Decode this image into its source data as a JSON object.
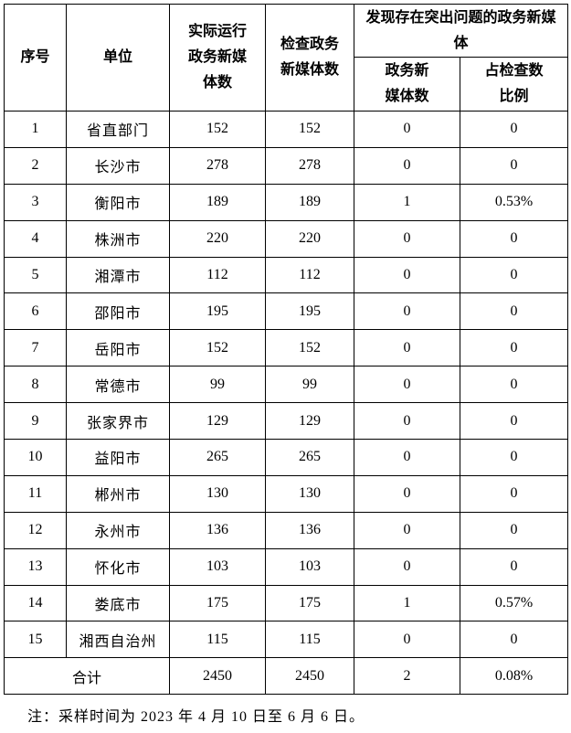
{
  "headers": {
    "index": "序号",
    "unit": "单位",
    "actual": "实际运行政务新媒体数",
    "checked": "检查政务新媒体数",
    "problem_group": "发现存在突出问题的政务新媒体",
    "problem_count": "政务新媒体数",
    "problem_ratio": "占检查数比例"
  },
  "rows": [
    {
      "index": "1",
      "unit": "省直部门",
      "actual": "152",
      "checked": "152",
      "problem": "0",
      "ratio": "0"
    },
    {
      "index": "2",
      "unit": "长沙市",
      "actual": "278",
      "checked": "278",
      "problem": "0",
      "ratio": "0"
    },
    {
      "index": "3",
      "unit": "衡阳市",
      "actual": "189",
      "checked": "189",
      "problem": "1",
      "ratio": "0.53%"
    },
    {
      "index": "4",
      "unit": "株洲市",
      "actual": "220",
      "checked": "220",
      "problem": "0",
      "ratio": "0"
    },
    {
      "index": "5",
      "unit": "湘潭市",
      "actual": "112",
      "checked": "112",
      "problem": "0",
      "ratio": "0"
    },
    {
      "index": "6",
      "unit": "邵阳市",
      "actual": "195",
      "checked": "195",
      "problem": "0",
      "ratio": "0"
    },
    {
      "index": "7",
      "unit": "岳阳市",
      "actual": "152",
      "checked": "152",
      "problem": "0",
      "ratio": "0"
    },
    {
      "index": "8",
      "unit": "常德市",
      "actual": "99",
      "checked": "99",
      "problem": "0",
      "ratio": "0"
    },
    {
      "index": "9",
      "unit": "张家界市",
      "actual": "129",
      "checked": "129",
      "problem": "0",
      "ratio": "0"
    },
    {
      "index": "10",
      "unit": "益阳市",
      "actual": "265",
      "checked": "265",
      "problem": "0",
      "ratio": "0"
    },
    {
      "index": "11",
      "unit": "郴州市",
      "actual": "130",
      "checked": "130",
      "problem": "0",
      "ratio": "0"
    },
    {
      "index": "12",
      "unit": "永州市",
      "actual": "136",
      "checked": "136",
      "problem": "0",
      "ratio": "0"
    },
    {
      "index": "13",
      "unit": "怀化市",
      "actual": "103",
      "checked": "103",
      "problem": "0",
      "ratio": "0"
    },
    {
      "index": "14",
      "unit": "娄底市",
      "actual": "175",
      "checked": "175",
      "problem": "1",
      "ratio": "0.57%"
    },
    {
      "index": "15",
      "unit": "湘西自治州",
      "actual": "115",
      "checked": "115",
      "problem": "0",
      "ratio": "0"
    }
  ],
  "total": {
    "label": "合计",
    "actual": "2450",
    "checked": "2450",
    "problem": "2",
    "ratio": "0.08%"
  },
  "note": "注：采样时间为 2023 年 4 月 10 日至 6 月 6 日。"
}
